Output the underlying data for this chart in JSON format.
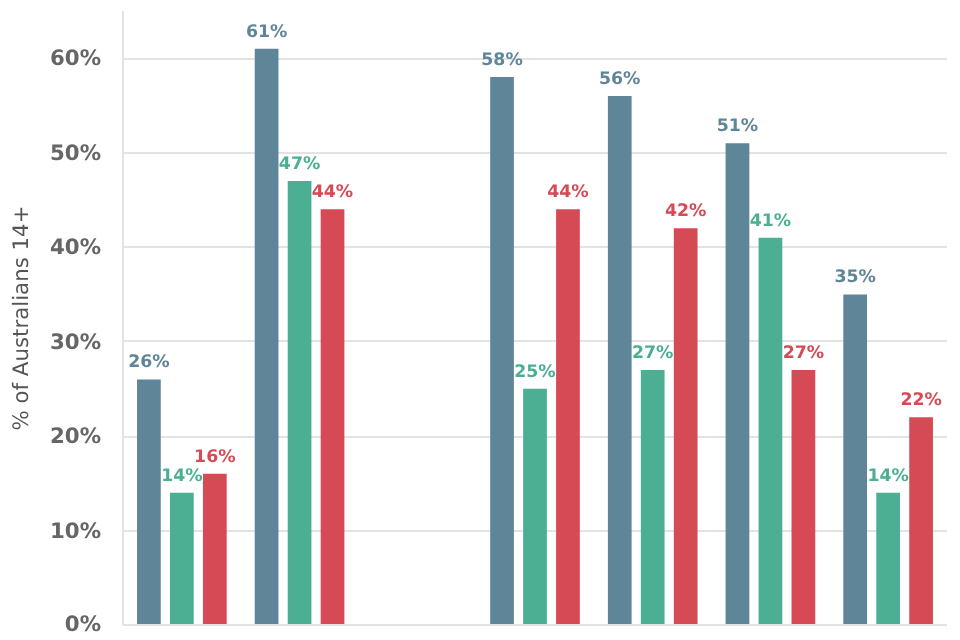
{
  "chart_data": {
    "type": "bar",
    "ylabel": "% of Australians 14+",
    "categories": [
      null,
      null,
      null,
      null,
      null,
      null,
      null
    ],
    "series": [
      {
        "color": "#5f8599",
        "values": [
          26,
          61,
          null,
          58,
          56,
          51,
          35
        ],
        "value_labels": [
          "26%",
          "61%",
          null,
          "58%",
          "56%",
          "51%",
          "35%"
        ]
      },
      {
        "color": "#4caf93",
        "values": [
          14,
          47,
          null,
          25,
          27,
          41,
          14
        ],
        "value_labels": [
          "14%",
          "47%",
          null,
          "25%",
          "27%",
          "41%",
          "14%"
        ]
      },
      {
        "color": "#d64a56",
        "values": [
          16,
          44,
          null,
          44,
          42,
          27,
          22
        ],
        "value_labels": [
          "16%",
          "44%",
          null,
          "44%",
          "42%",
          "27%",
          "22%"
        ]
      }
    ],
    "ylim": [
      0,
      65
    ],
    "yticks": [
      {
        "value": 0,
        "label": "0%"
      },
      {
        "value": 10,
        "label": "10%"
      },
      {
        "value": 20,
        "label": "20%"
      },
      {
        "value": 30,
        "label": "30%"
      },
      {
        "value": 40,
        "label": "40%"
      },
      {
        "value": 50,
        "label": "50%"
      },
      {
        "value": 60,
        "label": "60%"
      }
    ],
    "grid": "y",
    "tick_labels": "y"
  }
}
